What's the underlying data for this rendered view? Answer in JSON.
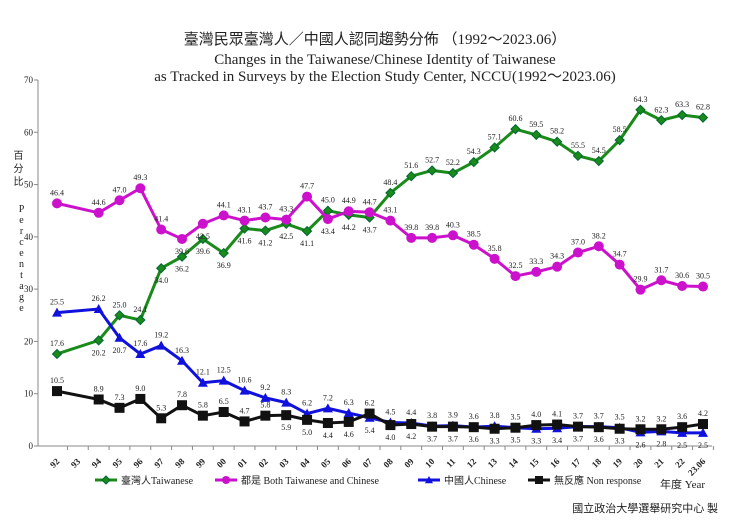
{
  "chart_data": {
    "type": "line",
    "title": "臺灣民眾臺灣人／中國人認同趨勢分佈 （1992～2023.06）",
    "subtitle": [
      "Changes in the Taiwanese/Chinese Identity of Taiwanese",
      "as Tracked in Surveys by the Election Study Center, NCCU(1992～2023.06)"
    ],
    "ylabel_zh": "百分比",
    "ylabel": "Percentage",
    "xlabel": "年度 Year",
    "ylim": [
      0,
      70
    ],
    "yticks": [
      0,
      10,
      20,
      30,
      40,
      50,
      60,
      70
    ],
    "grid": false,
    "legend": "bottom",
    "categories": [
      "92",
      "93",
      "94",
      "95",
      "96",
      "97",
      "98",
      "99",
      "00",
      "01",
      "02",
      "03",
      "04",
      "05",
      "06",
      "07",
      "08",
      "09",
      "10",
      "11",
      "12",
      "13",
      "14",
      "15",
      "16",
      "17",
      "18",
      "19",
      "20",
      "21",
      "22",
      "23.06"
    ],
    "series": [
      {
        "name": "臺灣人Taiwanese",
        "color": "#1a8a1a",
        "marker": "diamond",
        "values": [
          17.6,
          null,
          20.2,
          25.0,
          24.1,
          34.0,
          36.2,
          39.6,
          36.9,
          41.6,
          41.2,
          42.5,
          41.1,
          45.0,
          44.2,
          43.7,
          48.4,
          51.6,
          52.7,
          52.2,
          54.3,
          57.1,
          60.6,
          59.5,
          58.2,
          55.5,
          54.5,
          58.5,
          64.3,
          62.3,
          63.3,
          62.8
        ]
      },
      {
        "name": "都是 Both Taiwanese and Chinese",
        "color": "#cc11cc",
        "marker": "circle",
        "values": [
          46.4,
          null,
          44.6,
          47.0,
          49.3,
          41.4,
          39.6,
          42.5,
          44.1,
          43.1,
          43.7,
          43.3,
          47.7,
          43.4,
          44.9,
          44.7,
          43.1,
          39.8,
          39.8,
          40.3,
          38.5,
          35.8,
          32.5,
          33.3,
          34.3,
          37.0,
          38.2,
          34.7,
          29.9,
          31.7,
          30.6,
          30.5
        ]
      },
      {
        "name": "中國人Chinese",
        "color": "#1111dd",
        "marker": "triangle",
        "values": [
          25.5,
          null,
          26.2,
          20.7,
          17.6,
          19.2,
          16.3,
          12.1,
          12.5,
          10.6,
          9.2,
          8.3,
          6.2,
          7.2,
          6.3,
          5.4,
          4.5,
          4.4,
          3.8,
          3.9,
          3.6,
          3.8,
          3.5,
          3.3,
          3.4,
          3.7,
          3.7,
          3.5,
          2.6,
          2.8,
          2.5,
          2.5
        ]
      },
      {
        "name": "無反應 Non response",
        "color": "#111111",
        "marker": "square",
        "values": [
          10.5,
          null,
          8.9,
          7.3,
          9.0,
          5.3,
          7.8,
          5.8,
          6.5,
          4.7,
          5.8,
          5.9,
          5.0,
          4.4,
          4.6,
          6.2,
          4.0,
          4.2,
          3.7,
          3.7,
          3.6,
          3.3,
          3.5,
          4.0,
          4.1,
          3.7,
          3.6,
          3.3,
          3.2,
          3.2,
          3.6,
          4.2
        ]
      }
    ],
    "source": "國立政治大學選舉研究中心 製"
  }
}
